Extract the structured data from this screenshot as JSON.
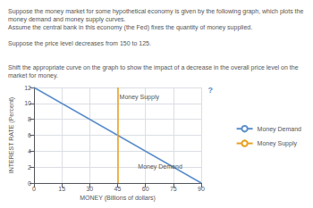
{
  "chart_data": {
    "type": "line",
    "title": "Suppose the money market for some hypothetical economy is given by the following graph, which plots the money demand and money supply curves.\nAssume the central bank in this economy (the Fed) fixes the quantity of money supplied.\n\nSuppose the price level decreases from 150 to 125.\n\n\nShift the appropriate curve on the graph to show the impact of a decrease in the overall price level on the market for money.",
    "xlabel": "MONEY (Billions of dollars)",
    "ylabel": "INTEREST RATE (Percent)",
    "xlim": [
      0,
      90
    ],
    "ylim": [
      0,
      12
    ],
    "xticks": [
      0,
      15,
      30,
      45,
      60,
      75,
      90
    ],
    "yticks": [
      0,
      2,
      4,
      6,
      8,
      10,
      12
    ],
    "grid": true,
    "legend": "right",
    "series": [
      {
        "name": "Money Demand",
        "type": "line",
        "color": "#5b8ecb",
        "x": [
          0,
          90
        ],
        "values": [
          12,
          0
        ]
      },
      {
        "name": "Money Supply",
        "type": "vline",
        "color": "#e8a020",
        "x": 45
      }
    ],
    "annotations": [
      {
        "text": "Money Supply",
        "x": 46,
        "y": 11.2
      },
      {
        "text": "Money Demand",
        "x": 56,
        "y": 2.5
      },
      {
        "text": "?",
        "color": "#5b8ecb"
      }
    ]
  }
}
